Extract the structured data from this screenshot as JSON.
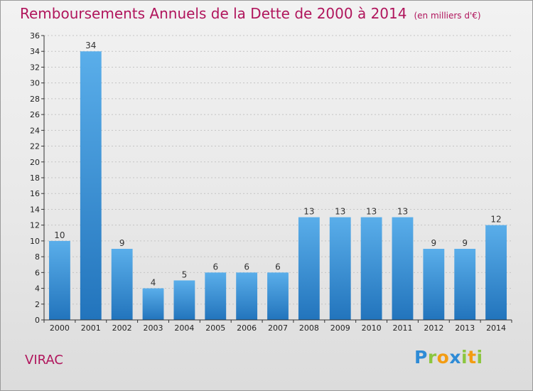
{
  "chart_data": {
    "type": "bar",
    "title": "Remboursements Annuels de la Dette de 2000 à 2014",
    "unit_note": "(en milliers d'€)",
    "categories": [
      "2000",
      "2001",
      "2002",
      "2003",
      "2004",
      "2005",
      "2006",
      "2007",
      "2008",
      "2009",
      "2010",
      "2011",
      "2012",
      "2013",
      "2014"
    ],
    "values": [
      10,
      34,
      9,
      4,
      5,
      6,
      6,
      6,
      13,
      13,
      13,
      13,
      9,
      9,
      12
    ],
    "ylim": [
      0,
      36
    ],
    "yticks": [
      0,
      2,
      4,
      6,
      8,
      10,
      12,
      14,
      16,
      18,
      20,
      22,
      24,
      26,
      28,
      30,
      32,
      34,
      36
    ],
    "grid": "horizontal dashed",
    "legend": "none",
    "bar_color": "#3e95da",
    "bar_color_dark": "#2274bc"
  },
  "city": "VIRAC",
  "logo": {
    "p": "P",
    "r": "r",
    "o": "o",
    "x": "x",
    "i1": "i",
    "t": "t",
    "i2": "i"
  },
  "colors": {
    "title": "#b0155c",
    "city": "#b0155c"
  }
}
